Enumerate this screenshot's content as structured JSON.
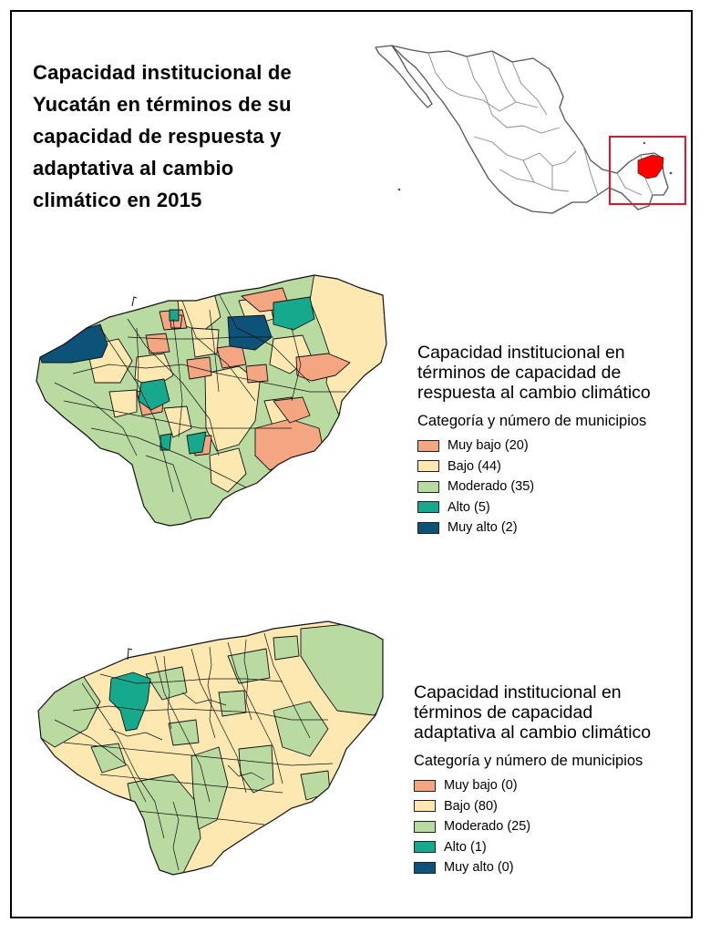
{
  "title_lines": [
    "Capacidad institucional de",
    "Yucatán en términos de su",
    "capacidad de respuesta y",
    "adaptativa al cambio",
    "climático en 2015"
  ],
  "colors": {
    "muy_bajo": "#f4a582",
    "bajo": "#fde8b2",
    "moderado": "#b9dba2",
    "alto": "#17a98d",
    "muy_alto": "#0c5279",
    "highlight": "#ff0000",
    "inset_box": "#e0152b"
  },
  "legend_response": {
    "title_lines": [
      "Capacidad institucional en",
      "términos de capacidad de",
      "respuesta al cambio climático"
    ],
    "subtitle": "Categoría y número de municipios",
    "items": [
      {
        "label": "Muy bajo (20)",
        "color": "#f4a582"
      },
      {
        "label": "Bajo (44)",
        "color": "#fde8b2"
      },
      {
        "label": "Moderado (35)",
        "color": "#b9dba2"
      },
      {
        "label": "Alto (5)",
        "color": "#17a98d"
      },
      {
        "label": "Muy alto (2)",
        "color": "#0c5279"
      }
    ]
  },
  "legend_adaptive": {
    "title_lines": [
      "Capacidad institucional en",
      "términos de capacidad",
      "adaptativa al cambio climático"
    ],
    "subtitle": "Categoría y número de municipios",
    "items": [
      {
        "label": "Muy bajo (0)",
        "color": "#f4a582"
      },
      {
        "label": "Bajo (80)",
        "color": "#fde8b2"
      },
      {
        "label": "Moderado (25)",
        "color": "#b9dba2"
      },
      {
        "label": "Alto (1)",
        "color": "#17a98d"
      },
      {
        "label": "Muy alto (0)",
        "color": "#0c5279"
      }
    ]
  }
}
